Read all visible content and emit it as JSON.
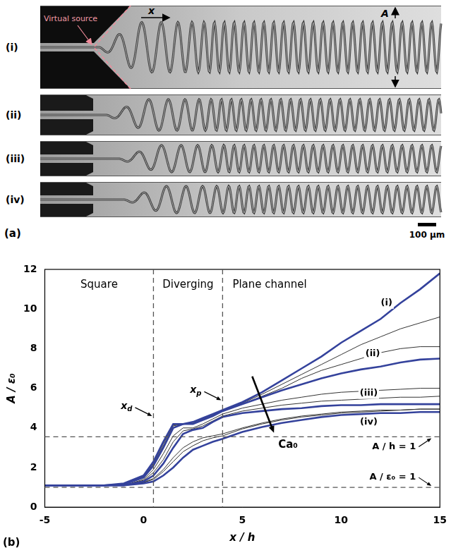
{
  "panel_a": {
    "label": "(a)",
    "strips": [
      "(i)",
      "(ii)",
      "(iii)",
      "(iv)"
    ],
    "virtual_source": "Virtual source",
    "x_label": "x",
    "amplitude_label": "A",
    "scale_bar": "100 μm"
  },
  "chart_data": {
    "type": "line",
    "panel_label": "(b)",
    "x_label": "x / h",
    "y_label": "A / ε₀",
    "x": [
      -5,
      -2,
      -1,
      0,
      0.5,
      1,
      1.5,
      2,
      2.5,
      3,
      3.5,
      4,
      5,
      6,
      7,
      8,
      9,
      10,
      11,
      12,
      13,
      14,
      15
    ],
    "xlim": [
      -5,
      15
    ],
    "xticks": [
      -5,
      0,
      5,
      10,
      15
    ],
    "ylim": [
      0,
      12
    ],
    "yticks": [
      0,
      2,
      4,
      6,
      8,
      10,
      12
    ],
    "grid": false,
    "series": [
      {
        "name": "(i)",
        "color": "#34429c",
        "values": [
          1.1,
          1.1,
          1.2,
          1.6,
          2.3,
          3.3,
          4.2,
          4.2,
          4.3,
          4.5,
          4.7,
          4.9,
          5.3,
          5.8,
          6.4,
          7.0,
          7.6,
          8.3,
          8.9,
          9.5,
          10.3,
          11.0,
          11.8
        ]
      },
      {
        "name": "(ii)",
        "color": "#34429c",
        "values": [
          1.1,
          1.1,
          1.15,
          1.5,
          2.1,
          3.0,
          4.0,
          4.2,
          4.2,
          4.4,
          4.6,
          4.85,
          5.2,
          5.55,
          5.9,
          6.2,
          6.5,
          6.75,
          6.95,
          7.1,
          7.3,
          7.45,
          7.5
        ]
      },
      {
        "name": "(iii)",
        "color": "#34429c",
        "values": [
          1.1,
          1.1,
          1.1,
          1.3,
          1.6,
          2.2,
          3.0,
          3.7,
          3.9,
          4.0,
          4.3,
          4.55,
          4.75,
          4.85,
          4.95,
          5.0,
          5.1,
          5.15,
          5.15,
          5.2,
          5.2,
          5.2,
          5.2
        ]
      },
      {
        "name": "(iv)",
        "color": "#34429c",
        "values": [
          1.1,
          1.1,
          1.1,
          1.2,
          1.3,
          1.6,
          2.0,
          2.5,
          2.9,
          3.1,
          3.3,
          3.45,
          3.8,
          4.05,
          4.25,
          4.4,
          4.55,
          4.65,
          4.7,
          4.75,
          4.75,
          4.8,
          4.8
        ]
      },
      {
        "color": "#333333",
        "values": [
          1.1,
          1.1,
          1.2,
          1.55,
          2.2,
          3.2,
          4.15,
          4.2,
          4.25,
          4.45,
          4.65,
          4.9,
          5.25,
          5.7,
          6.2,
          6.7,
          7.2,
          7.7,
          8.2,
          8.6,
          9.0,
          9.3,
          9.6
        ]
      },
      {
        "color": "#333333",
        "values": [
          1.1,
          1.1,
          1.15,
          1.5,
          2.15,
          3.1,
          4.1,
          4.2,
          4.2,
          4.4,
          4.6,
          4.85,
          5.2,
          5.6,
          6.0,
          6.5,
          6.9,
          7.2,
          7.5,
          7.8,
          8.0,
          8.1,
          8.1
        ]
      },
      {
        "color": "#333333",
        "values": [
          1.1,
          1.1,
          1.1,
          1.4,
          1.9,
          2.7,
          3.6,
          4.0,
          4.0,
          4.2,
          4.45,
          4.7,
          5.0,
          5.2,
          5.4,
          5.55,
          5.7,
          5.8,
          5.85,
          5.9,
          5.95,
          6.0,
          6.0
        ]
      },
      {
        "color": "#333333",
        "values": [
          1.1,
          1.1,
          1.1,
          1.35,
          1.75,
          2.4,
          3.3,
          3.85,
          3.95,
          4.1,
          4.35,
          4.6,
          4.85,
          5.0,
          5.15,
          5.25,
          5.35,
          5.4,
          5.45,
          5.5,
          5.55,
          5.55,
          5.6
        ]
      },
      {
        "color": "#333333",
        "values": [
          1.1,
          1.1,
          1.1,
          1.25,
          1.4,
          1.8,
          2.3,
          2.8,
          3.1,
          3.35,
          3.5,
          3.6,
          3.95,
          4.2,
          4.4,
          4.55,
          4.65,
          4.75,
          4.8,
          4.85,
          4.9,
          4.95,
          4.95
        ]
      },
      {
        "color": "#333333",
        "values": [
          1.1,
          1.1,
          1.1,
          1.25,
          1.45,
          1.9,
          2.5,
          3.0,
          3.3,
          3.5,
          3.6,
          3.7,
          4.0,
          4.25,
          4.45,
          4.6,
          4.7,
          4.8,
          4.85,
          4.9,
          4.9,
          4.95,
          4.95
        ]
      }
    ],
    "regions": [
      "Square",
      "Diverging",
      "Plane channel"
    ],
    "vlines": [
      {
        "value": 0.5,
        "label": {
          "text": "x",
          "sub": "d"
        }
      },
      {
        "value": 4,
        "label": {
          "text": "x",
          "sub": "p"
        }
      }
    ],
    "hlines": [
      {
        "value": 1,
        "label": "A / ε₀ = 1"
      },
      {
        "value": 3.55,
        "label": "A / h = 1"
      }
    ],
    "arrow_label": "Ca₀"
  }
}
